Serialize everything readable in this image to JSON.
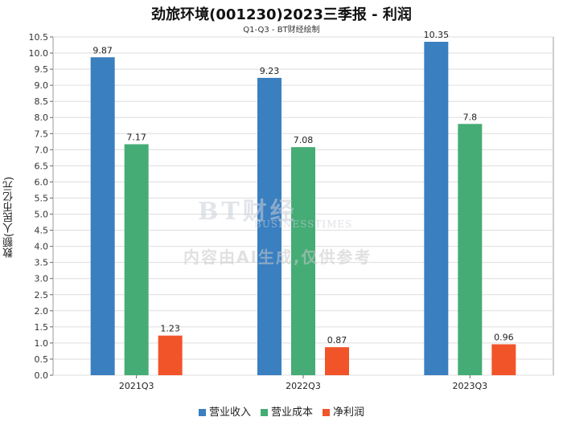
{
  "chart_data": {
    "type": "bar",
    "title": "劲旅环境(001230)2023三季报 - 利润",
    "subtitle": "Q1-Q3 - BT财经绘制",
    "ylabel": "数额(人民币亿元)",
    "xlabel": "",
    "categories": [
      "2021Q3",
      "2022Q3",
      "2023Q3"
    ],
    "series": [
      {
        "name": "营业收入",
        "color": "#3a7fc0",
        "values": [
          9.87,
          9.23,
          10.35
        ]
      },
      {
        "name": "营业成本",
        "color": "#45ac75",
        "values": [
          7.17,
          7.08,
          7.8
        ]
      },
      {
        "name": "净利润",
        "color": "#f2542a",
        "values": [
          1.23,
          0.87,
          0.96
        ]
      }
    ],
    "ylim": [
      0,
      10.5
    ],
    "ytick_step": 0.5,
    "grid": true,
    "legend_position": "bottom"
  },
  "watermark": {
    "logo": "BT财经",
    "logo_sub": "BUSINESSTIMES",
    "note": "内容由AI生成,仅供参考"
  }
}
